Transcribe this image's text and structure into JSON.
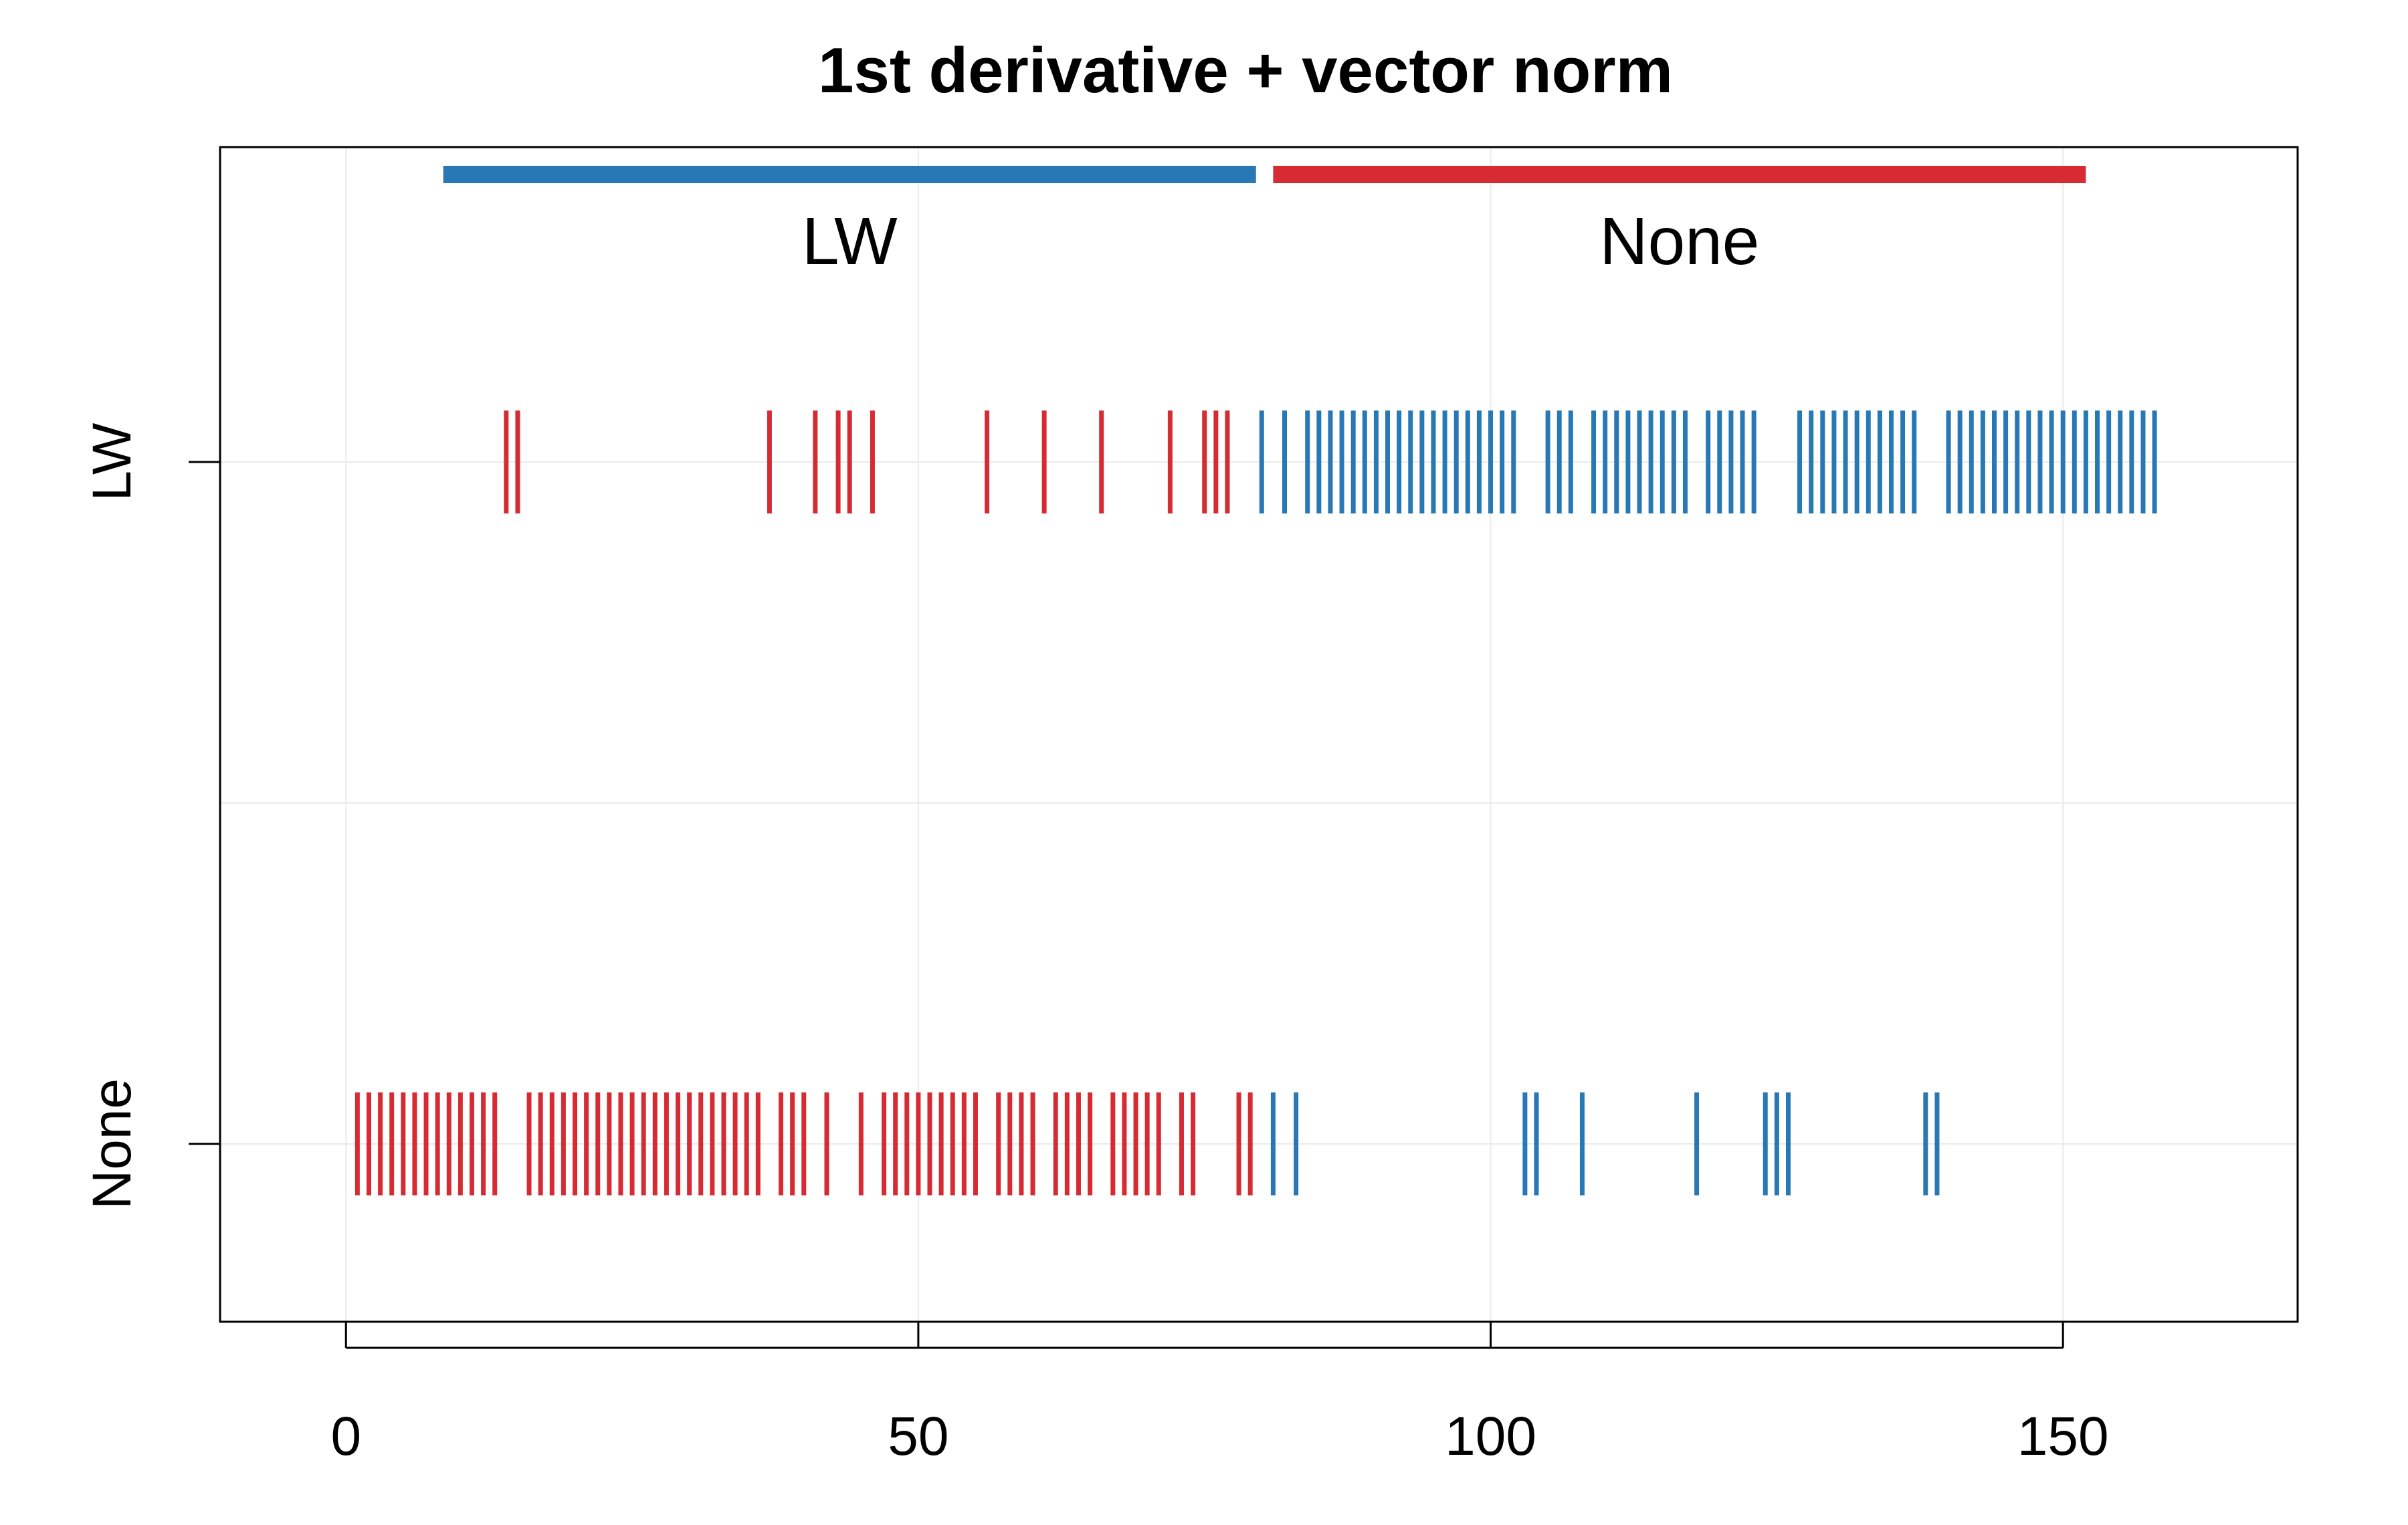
{
  "chart_data": {
    "type": "strip",
    "title": "1st derivative + vector norm",
    "xlabel": "",
    "ylabel": "",
    "xlim": [
      -11,
      170.5
    ],
    "x_ticks": [
      0,
      50,
      100,
      150
    ],
    "x_tick_labels": [
      "0",
      "50",
      "100",
      "150"
    ],
    "y_categories": [
      "LW",
      "None"
    ],
    "grid": true,
    "colors": {
      "LW": "#2878b5",
      "None": "#d62b33"
    },
    "groups": [
      {
        "label": "LW",
        "color": "#2878b5",
        "from": 8.5,
        "to": 79.5
      },
      {
        "label": "None",
        "color": "#d62b33",
        "from": 81,
        "to": 152
      }
    ],
    "series": [
      {
        "name": "LW",
        "red": [
          14,
          15,
          37,
          41,
          43,
          44,
          46,
          56,
          61,
          66,
          72,
          75,
          76,
          77
        ],
        "blue": [
          80,
          82,
          84,
          85,
          86,
          87,
          88,
          89,
          90,
          91,
          92,
          93,
          94,
          95,
          96,
          97,
          98,
          99,
          100,
          101,
          102,
          105,
          106,
          107,
          109,
          110,
          111,
          112,
          113,
          114,
          115,
          116,
          117,
          119,
          120,
          121,
          122,
          123,
          127,
          128,
          129,
          130,
          131,
          132,
          133,
          134,
          135,
          136,
          137,
          140,
          141,
          142,
          143,
          144,
          145,
          146,
          147,
          148,
          149,
          150,
          151,
          152,
          153,
          154,
          155,
          156,
          157,
          158
        ]
      },
      {
        "name": "None",
        "red": [
          1,
          2,
          3,
          4,
          5,
          6,
          7,
          8,
          9,
          10,
          11,
          12,
          13,
          16,
          17,
          18,
          19,
          20,
          21,
          22,
          23,
          24,
          25,
          26,
          27,
          28,
          29,
          30,
          31,
          32,
          33,
          34,
          35,
          36,
          38,
          39,
          40,
          42,
          45,
          47,
          48,
          49,
          50,
          51,
          52,
          53,
          54,
          55,
          57,
          58,
          59,
          60,
          62,
          63,
          64,
          65,
          67,
          68,
          69,
          70,
          71,
          73,
          74,
          78,
          79
        ],
        "blue": [
          81,
          83,
          103,
          104,
          108,
          118,
          124,
          125,
          126,
          138,
          139
        ]
      }
    ]
  }
}
